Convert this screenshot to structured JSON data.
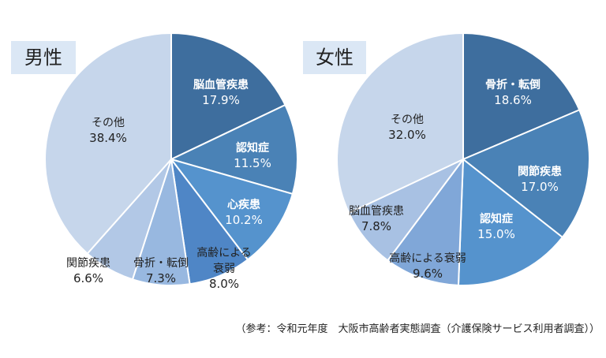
{
  "colors": {
    "panel_label_bg": "#dbe7f5",
    "slice_edge": "#ffffff",
    "text_on_dark": "#ffffff",
    "text_on_light": "#222222"
  },
  "note": "（参考：令和元年度　大阪市高齢者実態調査（介護保険サービス利用者調査））",
  "chart_data": [
    {
      "type": "pie",
      "title": "男性",
      "slices": [
        {
          "label": "脳血管疾患",
          "value": 17.9,
          "display": "17.9%",
          "color": "#3e6e9e",
          "text_color": "#ffffff",
          "bold": true
        },
        {
          "label": "認知症",
          "value": 11.5,
          "display": "11.5%",
          "color": "#4a82b6",
          "text_color": "#ffffff",
          "bold": true
        },
        {
          "label": "心疾患",
          "value": 10.2,
          "display": "10.2%",
          "color": "#5593cd",
          "text_color": "#ffffff",
          "bold": true
        },
        {
          "label": "高齢による衰弱",
          "value": 8.0,
          "display": "8.0%",
          "color": "#4f86c6",
          "text_color": "#222222",
          "bold": false
        },
        {
          "label": "骨折・転倒",
          "value": 7.3,
          "display": "7.3%",
          "color": "#98b8e0",
          "text_color": "#222222",
          "bold": false
        },
        {
          "label": "関節疾患",
          "value": 6.6,
          "display": "6.6%",
          "color": "#b2c8e6",
          "text_color": "#222222",
          "bold": false
        },
        {
          "label": "その他",
          "value": 38.4,
          "display": "38.4%",
          "color": "#c6d6eb",
          "text_color": "#222222",
          "bold": false
        }
      ]
    },
    {
      "type": "pie",
      "title": "女性",
      "slices": [
        {
          "label": "骨折・転倒",
          "value": 18.6,
          "display": "18.6%",
          "color": "#3e6e9e",
          "text_color": "#ffffff",
          "bold": true
        },
        {
          "label": "関節疾患",
          "value": 17.0,
          "display": "17.0%",
          "color": "#4a82b6",
          "text_color": "#ffffff",
          "bold": true
        },
        {
          "label": "認知症",
          "value": 15.0,
          "display": "15.0%",
          "color": "#5593cd",
          "text_color": "#ffffff",
          "bold": true
        },
        {
          "label": "高齢による衰弱",
          "value": 9.6,
          "display": "9.6%",
          "color": "#80a7d8",
          "text_color": "#222222",
          "bold": false
        },
        {
          "label": "脳血管疾患",
          "value": 7.8,
          "display": "7.8%",
          "color": "#a8c1e3",
          "text_color": "#222222",
          "bold": false
        },
        {
          "label": "その他",
          "value": 32.0,
          "display": "32.0%",
          "color": "#c6d6eb",
          "text_color": "#222222",
          "bold": false
        }
      ]
    }
  ]
}
